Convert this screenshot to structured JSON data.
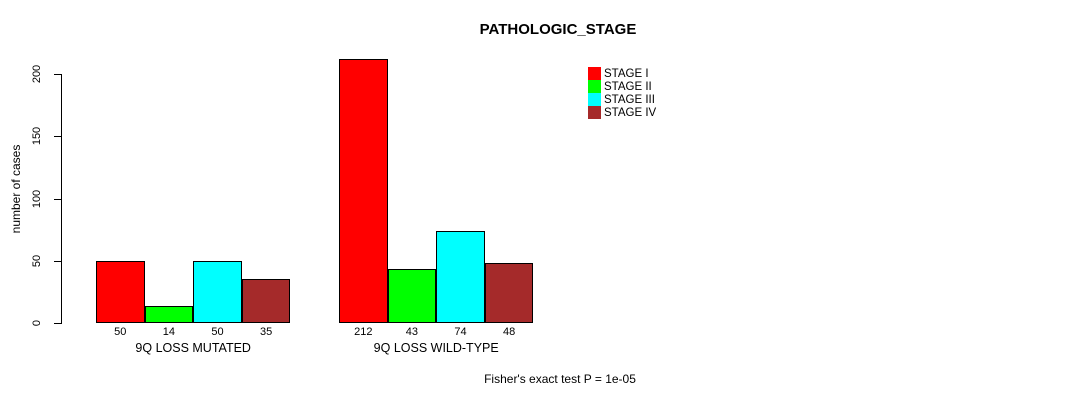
{
  "chart_data": {
    "type": "bar",
    "title": "PATHOLOGIC_STAGE",
    "xlabel": "",
    "ylabel": "number of cases",
    "ylim": [
      0,
      212
    ],
    "yticks": [
      0,
      50,
      100,
      150,
      200
    ],
    "grid": false,
    "legend_position": "top-right",
    "categories": [
      "9Q LOSS MUTATED",
      "9Q LOSS WILD-TYPE"
    ],
    "series": [
      {
        "name": "STAGE I",
        "color": "#ff0000",
        "values": [
          50,
          212
        ]
      },
      {
        "name": "STAGE II",
        "color": "#00ff00",
        "values": [
          14,
          43
        ]
      },
      {
        "name": "STAGE III",
        "color": "#00ffff",
        "values": [
          50,
          74
        ]
      },
      {
        "name": "STAGE IV",
        "color": "#a52a2a",
        "values": [
          35,
          48
        ]
      }
    ],
    "bar_value_labels": [
      [
        50,
        14,
        50,
        35
      ],
      [
        212,
        43,
        74,
        48
      ]
    ],
    "annotation": "Fisher's exact test P = 1e-05"
  }
}
